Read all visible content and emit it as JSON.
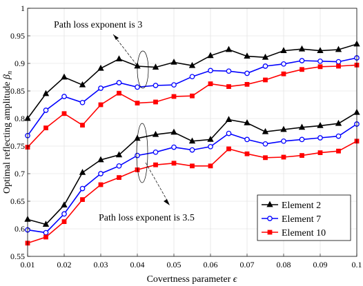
{
  "chart_data": {
    "type": "line",
    "xlabel": "Covertness parameter ϵ",
    "ylabel": "Optimal reflecting amplitude βn",
    "xlim": [
      0.01,
      0.1
    ],
    "ylim": [
      0.55,
      1.0
    ],
    "xticks": [
      "0.01",
      "0.02",
      "0.03",
      "0.04",
      "0.05",
      "0.06",
      "0.07",
      "0.08",
      "0.09",
      "0.1"
    ],
    "yticks": [
      "0.55",
      "0.6",
      "0.65",
      "0.7",
      "0.75",
      "0.8",
      "0.85",
      "0.9",
      "0.95",
      "1"
    ],
    "grid": true,
    "legend_position": "bottom-right",
    "x": [
      0.01,
      0.015,
      0.02,
      0.025,
      0.03,
      0.035,
      0.04,
      0.045,
      0.05,
      0.055,
      0.06,
      0.065,
      0.07,
      0.075,
      0.08,
      0.085,
      0.09,
      0.095,
      0.1
    ],
    "groups": [
      {
        "annotation": "Path loss exponent is 3",
        "series": [
          {
            "name": "Element 2",
            "color": "#000000",
            "marker": "triangle",
            "values": [
              0.8,
              0.845,
              0.875,
              0.861,
              0.891,
              0.908,
              0.895,
              0.893,
              0.902,
              0.896,
              0.914,
              0.925,
              0.913,
              0.911,
              0.923,
              0.926,
              0.923,
              0.925,
              0.935
            ]
          },
          {
            "name": "Element 7",
            "color": "#0000ff",
            "marker": "circle",
            "values": [
              0.769,
              0.815,
              0.84,
              0.829,
              0.855,
              0.865,
              0.857,
              0.86,
              0.861,
              0.876,
              0.887,
              0.886,
              0.882,
              0.895,
              0.899,
              0.905,
              0.904,
              0.903,
              0.91
            ]
          },
          {
            "name": "Element 10",
            "color": "#ff0000",
            "marker": "square",
            "values": [
              0.748,
              0.783,
              0.809,
              0.788,
              0.825,
              0.846,
              0.828,
              0.83,
              0.84,
              0.841,
              0.863,
              0.858,
              0.862,
              0.87,
              0.881,
              0.889,
              0.894,
              0.895,
              0.897
            ]
          }
        ]
      },
      {
        "annotation": "Path loss exponent is 3.5",
        "series": [
          {
            "name": "Element 2",
            "color": "#000000",
            "marker": "triangle",
            "values": [
              0.617,
              0.608,
              0.643,
              0.702,
              0.725,
              0.734,
              0.764,
              0.771,
              0.775,
              0.759,
              0.762,
              0.798,
              0.792,
              0.776,
              0.78,
              0.784,
              0.787,
              0.791,
              0.811
            ]
          },
          {
            "name": "Element 7",
            "color": "#0000ff",
            "marker": "circle",
            "values": [
              0.598,
              0.593,
              0.627,
              0.673,
              0.7,
              0.714,
              0.733,
              0.739,
              0.748,
              0.743,
              0.749,
              0.773,
              0.762,
              0.754,
              0.759,
              0.762,
              0.765,
              0.768,
              0.79
            ]
          },
          {
            "name": "Element 10",
            "color": "#ff0000",
            "marker": "square",
            "values": [
              0.574,
              0.585,
              0.613,
              0.653,
              0.68,
              0.693,
              0.707,
              0.716,
              0.719,
              0.714,
              0.714,
              0.745,
              0.736,
              0.729,
              0.73,
              0.733,
              0.738,
              0.741,
              0.759
            ]
          }
        ]
      }
    ],
    "legend": [
      {
        "label": "Element 2",
        "color": "#000000",
        "marker": "triangle"
      },
      {
        "label": "Element 7",
        "color": "#0000ff",
        "marker": "circle"
      },
      {
        "label": "Element 10",
        "color": "#ff0000",
        "marker": "square"
      }
    ]
  }
}
